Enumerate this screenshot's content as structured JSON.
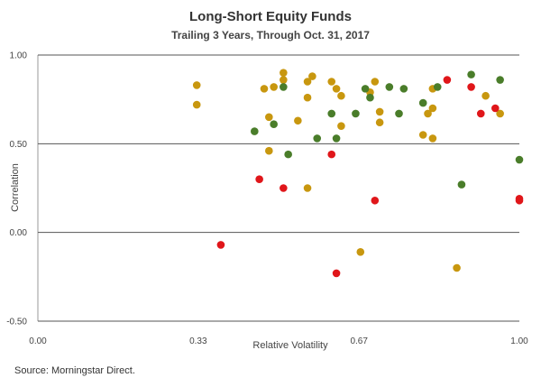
{
  "title": "Long-Short Equity Funds",
  "subtitle": "Trailing 3 Years, Through Oct. 31, 2017",
  "source": "Source: Morningstar Direct.",
  "colors": {
    "gold": "#c8970f",
    "green": "#4a7d2a",
    "red": "#e0161a",
    "grid": "#555555",
    "plot_border": "#999999"
  },
  "chart_data": {
    "type": "scatter",
    "xlabel": "Relative Volatility",
    "ylabel": "Correlation",
    "xlim": [
      0,
      1
    ],
    "ylim": [
      -0.5,
      1
    ],
    "xticks": [
      {
        "value": 0,
        "label": "0.00"
      },
      {
        "value": 0.333,
        "label": "0.33"
      },
      {
        "value": 0.667,
        "label": "0.67"
      },
      {
        "value": 1,
        "label": "1.00"
      }
    ],
    "yticks": [
      {
        "value": 1,
        "label": "1.00"
      },
      {
        "value": 0.5,
        "label": "0.50"
      },
      {
        "value": 0,
        "label": "0.00"
      },
      {
        "value": -0.5,
        "label": "-0.50"
      }
    ],
    "gridlines_y": true,
    "series": [
      {
        "color": "#c8970f",
        "points": [
          [
            0.33,
            0.83
          ],
          [
            0.33,
            0.72
          ],
          [
            0.47,
            0.81
          ],
          [
            0.49,
            0.82
          ],
          [
            0.51,
            0.9
          ],
          [
            0.51,
            0.86
          ],
          [
            0.48,
            0.65
          ],
          [
            0.48,
            0.46
          ],
          [
            0.54,
            0.63
          ],
          [
            0.56,
            0.85
          ],
          [
            0.56,
            0.76
          ],
          [
            0.57,
            0.88
          ],
          [
            0.56,
            0.25
          ],
          [
            0.61,
            0.85
          ],
          [
            0.62,
            0.81
          ],
          [
            0.63,
            0.77
          ],
          [
            0.63,
            0.6
          ],
          [
            0.67,
            -0.11
          ],
          [
            0.69,
            0.79
          ],
          [
            0.7,
            0.85
          ],
          [
            0.71,
            0.68
          ],
          [
            0.71,
            0.62
          ],
          [
            0.8,
            0.55
          ],
          [
            0.81,
            0.67
          ],
          [
            0.82,
            0.81
          ],
          [
            0.82,
            0.7
          ],
          [
            0.82,
            0.53
          ],
          [
            0.87,
            -0.2
          ],
          [
            0.93,
            0.77
          ],
          [
            0.96,
            0.67
          ]
        ]
      },
      {
        "color": "#4a7d2a",
        "points": [
          [
            0.45,
            0.57
          ],
          [
            0.49,
            0.61
          ],
          [
            0.51,
            0.82
          ],
          [
            0.52,
            0.44
          ],
          [
            0.58,
            0.53
          ],
          [
            0.61,
            0.67
          ],
          [
            0.62,
            0.53
          ],
          [
            0.66,
            0.67
          ],
          [
            0.68,
            0.81
          ],
          [
            0.69,
            0.76
          ],
          [
            0.73,
            0.82
          ],
          [
            0.75,
            0.67
          ],
          [
            0.76,
            0.81
          ],
          [
            0.8,
            0.73
          ],
          [
            0.83,
            0.82
          ],
          [
            0.88,
            0.27
          ],
          [
            0.9,
            0.89
          ],
          [
            0.96,
            0.86
          ],
          [
            1.0,
            0.41
          ]
        ]
      },
      {
        "color": "#e0161a",
        "points": [
          [
            0.38,
            -0.07
          ],
          [
            0.46,
            0.3
          ],
          [
            0.51,
            0.25
          ],
          [
            0.61,
            0.44
          ],
          [
            0.62,
            -0.23
          ],
          [
            0.7,
            0.18
          ],
          [
            0.85,
            0.86
          ],
          [
            0.9,
            0.82
          ],
          [
            0.92,
            0.67
          ],
          [
            0.95,
            0.7
          ],
          [
            1.0,
            0.19
          ],
          [
            1.0,
            0.18
          ]
        ]
      }
    ]
  }
}
